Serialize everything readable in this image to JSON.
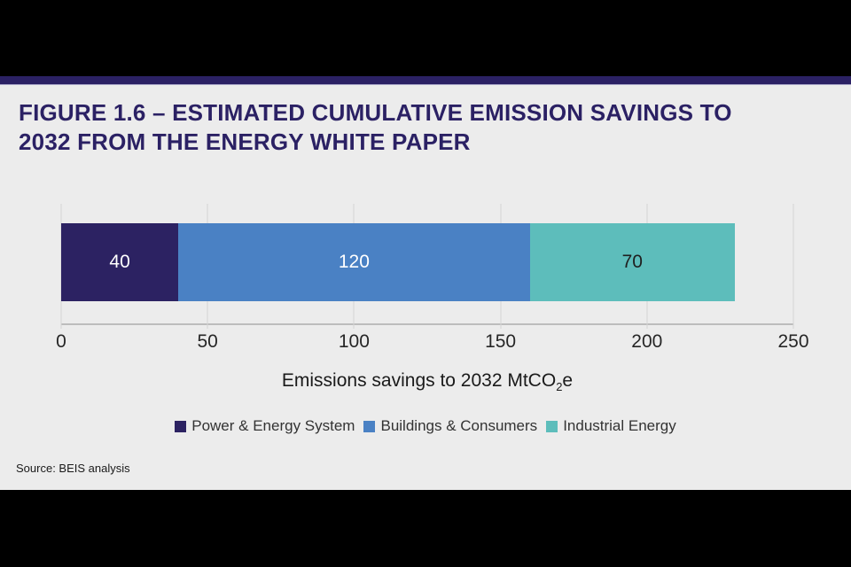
{
  "banner": {
    "top_color": "#000000",
    "bottom_color": "#000000",
    "stripe_color": "#2b2164",
    "stripe_edge_color": "#a8a5c8"
  },
  "title": {
    "line1": "FIGURE 1.6 – ESTIMATED CUMULATIVE EMISSION SAVINGS TO",
    "line2": "2032 FROM THE ENERGY WHITE PAPER",
    "color": "#2b2164"
  },
  "chart_data": {
    "type": "bar",
    "orientation": "horizontal",
    "stacked": true,
    "categories": [
      "Emissions savings to 2032"
    ],
    "series": [
      {
        "name": "Power & Energy System",
        "values": [
          40
        ],
        "color": "#2c2262",
        "label_color": "#ffffff"
      },
      {
        "name": "Buildings & Consumers",
        "values": [
          120
        ],
        "color": "#4a81c4",
        "label_color": "#ffffff"
      },
      {
        "name": "Industrial Energy",
        "values": [
          70
        ],
        "color": "#5dbdbb",
        "label_color": "#1f1f1f"
      }
    ],
    "total": 230,
    "xlabel": "Emissions savings to 2032 MtCO₂e",
    "xlabel_parts": {
      "prefix": "Emissions savings to 2032 MtCO",
      "sub": "2",
      "suffix": "e"
    },
    "x_ticks": [
      0,
      50,
      100,
      150,
      200,
      250
    ],
    "xlim": [
      0,
      250
    ],
    "grid": true,
    "gridline_color": "#d5d5d5",
    "axis_line_color": "#bdbdbd",
    "legend_position": "bottom"
  },
  "source": {
    "text": "Source: BEIS analysis"
  }
}
